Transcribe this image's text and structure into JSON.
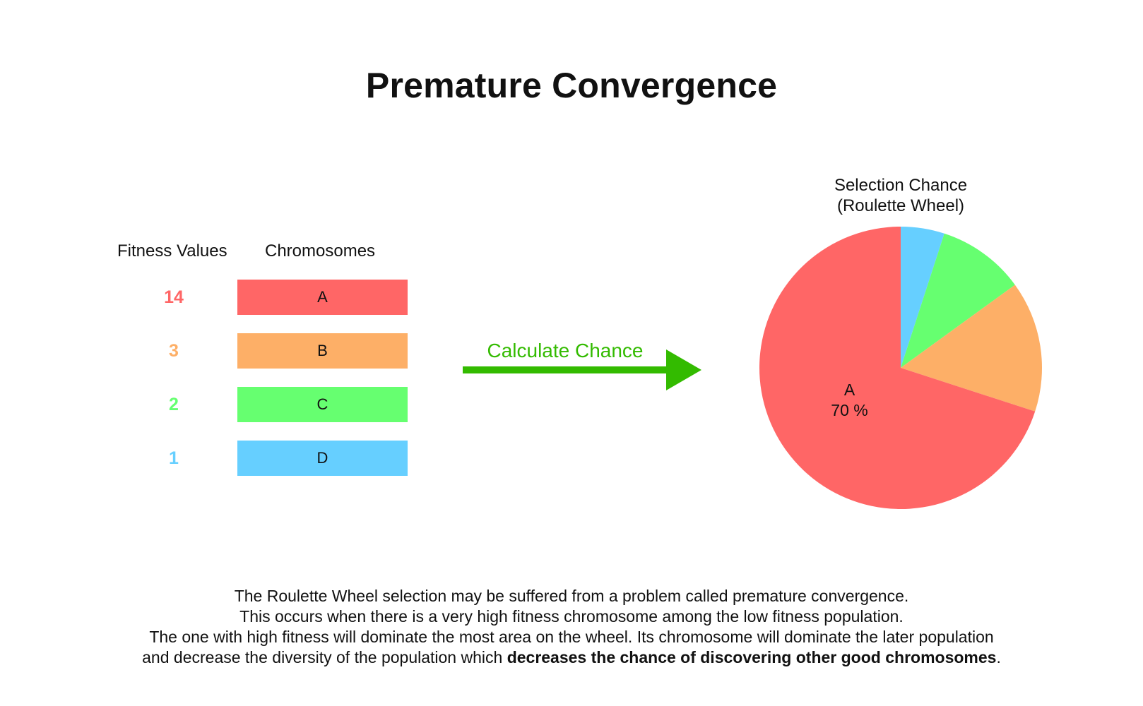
{
  "title": "Premature Convergence",
  "table": {
    "fitness_header": "Fitness Values",
    "chromosome_header": "Chromosomes",
    "rows": [
      {
        "fitness": "14",
        "chromosome": "A",
        "color": "#ff6666"
      },
      {
        "fitness": "3",
        "chromosome": "B",
        "color": "#fdaf67"
      },
      {
        "fitness": "2",
        "chromosome": "C",
        "color": "#66ff70"
      },
      {
        "fitness": "1",
        "chromosome": "D",
        "color": "#66cfff"
      }
    ]
  },
  "arrow": {
    "label": "Calculate Chance",
    "color": "#33bb00"
  },
  "chart_data": {
    "type": "pie",
    "title_line1": "Selection Chance",
    "title_line2": "(Roulette Wheel)",
    "slices": [
      {
        "name": "A",
        "value": 70,
        "color": "#ff6666"
      },
      {
        "name": "B",
        "value": 15,
        "color": "#fdaf67"
      },
      {
        "name": "C",
        "value": 10,
        "color": "#66ff70"
      },
      {
        "name": "D",
        "value": 5,
        "color": "#66cfff"
      }
    ],
    "label": {
      "name": "A",
      "percent": "70 %"
    }
  },
  "caption": {
    "line1": "The Roulette Wheel selection may be suffered from a problem called premature convergence.",
    "line2": "This occurs when there is a very high fitness chromosome among the low fitness population.",
    "line3": "The one with high fitness will dominate the most area on the wheel. Its chromosome will dominate the later population",
    "line4_start": "and decrease the diversity of the population which ",
    "line4_bold": "decreases the chance of discovering other good chromosomes",
    "line4_end": "."
  }
}
